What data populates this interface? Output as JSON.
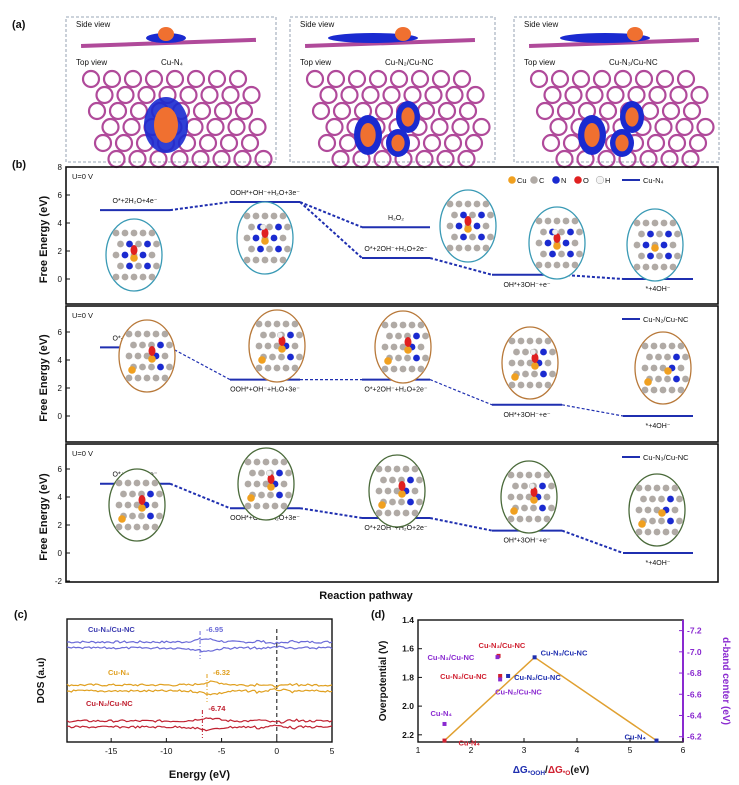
{
  "panel_labels": {
    "a": "(a)",
    "b": "(b)",
    "c": "(c)",
    "d": "(d)"
  },
  "panel_a": {
    "side_label": "Side view",
    "top_label": "Top view",
    "structures": [
      "Cu-N₄",
      "Cu-N₂/Cu-NC",
      "Cu-N₃/Cu-NC"
    ],
    "colors": {
      "lattice": "#b04a9a",
      "charge_gain": "#f07030",
      "charge_loss": "#1a2ad0"
    }
  },
  "chart_data": [
    {
      "type": "line",
      "panel": "b",
      "ylabel": "Free Energy (eV)",
      "xlabel": "Reaction pathway",
      "atom_legend": [
        "Cu",
        "C",
        "N",
        "O",
        "H"
      ],
      "atom_colors": {
        "Cu": "#f0a020",
        "C": "#b0aaa5",
        "N": "#1a2ad0",
        "O": "#e02020",
        "H": "#f4f4f4"
      },
      "subplots": [
        {
          "condition": "U=0 V",
          "series_name": "Cu-N₄",
          "yticks": [
            "8",
            "6",
            "4",
            "2",
            "0"
          ],
          "ylim": [
            -2,
            8
          ],
          "steps": [
            {
              "label": "O*+2H₂O+4e⁻",
              "energy": 4.92
            },
            {
              "label": "OOH*+OH⁻+H₂O+3e⁻",
              "energy": 5.5
            },
            {
              "label": "H₂O₂",
              "energy": 3.7
            },
            {
              "label": "O*+2OH⁻+H₂O+2e⁻",
              "energy": 1.5
            },
            {
              "label": "OH*+3OH⁻+e⁻",
              "energy": 0.3
            },
            {
              "label": "*+4OH⁻",
              "energy": 0.0
            }
          ]
        },
        {
          "condition": "U=0 V",
          "series_name": "Cu-N₂/Cu-NC",
          "yticks": [
            "6",
            "4",
            "2",
            "0"
          ],
          "ylim": [
            -2,
            8
          ],
          "steps": [
            {
              "label": "O*+2H₂O+4e⁻",
              "energy": 4.9
            },
            {
              "label": "OOH*+OH⁻+H₂O+3e⁻",
              "energy": 2.6
            },
            {
              "label": "O*+2OH⁻+H₂O+2e⁻",
              "energy": 2.6
            },
            {
              "label": "OH*+3OH⁻+e⁻",
              "energy": 0.8
            },
            {
              "label": "*+4OH⁻",
              "energy": 0.0
            }
          ]
        },
        {
          "condition": "U=0 V",
          "series_name": "Cu-N₃/Cu-NC",
          "yticks": [
            "6",
            "4",
            "2",
            "0",
            "-2"
          ],
          "ylim": [
            -2,
            8
          ],
          "steps": [
            {
              "label": "O*+2H₂O+4e⁻",
              "energy": 4.95
            },
            {
              "label": "OOH*+OH⁻+H₂O+3e⁻",
              "energy": 3.2
            },
            {
              "label": "O*+2OH⁻+H₂O+2e⁻",
              "energy": 2.5
            },
            {
              "label": "OH*+3OH⁻+e⁻",
              "energy": 1.6
            },
            {
              "label": "*+4OH⁻",
              "energy": 0.0
            }
          ]
        }
      ],
      "line_color": "#1f2fb0"
    },
    {
      "type": "line",
      "panel": "c",
      "xlabel": "Energy (eV)",
      "ylabel": "DOS (a.u)",
      "xlim": [
        -19,
        5
      ],
      "xticks": [
        "-15",
        "-10",
        "-5",
        "0",
        "5"
      ],
      "fermi_level": 0,
      "series": [
        {
          "name": "Cu-N₃/Cu-NC",
          "d_band_center": -6.95,
          "center_label": "-6.95",
          "color": "#6a6ad8"
        },
        {
          "name": "Cu-N₄",
          "d_band_center": -6.32,
          "center_label": "-6.32",
          "color": "#e0a020"
        },
        {
          "name": "Cu-N₂/Cu-NC",
          "d_band_center": -6.74,
          "center_label": "-6.74",
          "color": "#c02030"
        }
      ]
    },
    {
      "type": "scatter",
      "panel": "d",
      "xlabel_parts": [
        "ΔG",
        "*OOH",
        "/",
        "ΔG",
        "*O",
        "(eV)"
      ],
      "ylabel": "Overpotential (V)",
      "y2label": "d-band center (eV)",
      "xlim": [
        1,
        6
      ],
      "ylim": [
        1.4,
        2.25
      ],
      "y2lim": [
        -7.3,
        -6.15
      ],
      "xticks": [
        "1",
        "2",
        "3",
        "4",
        "5",
        "6"
      ],
      "yticks": [
        "1.4",
        "1.6",
        "1.8",
        "2.0",
        "2.2"
      ],
      "y2ticks": [
        "-7.2",
        "-7.0",
        "-6.8",
        "-6.6",
        "-6.4",
        "-6.2"
      ],
      "volcano": [
        [
          1.5,
          2.24
        ],
        [
          3.2,
          1.66
        ],
        [
          5.5,
          2.24
        ]
      ],
      "volcano_color": "#e0a030",
      "series": [
        {
          "key": "ooh",
          "color": "#1f2fb0",
          "axis": "left",
          "points": [
            {
              "x": 3.2,
              "y": 1.66,
              "label": "Cu-N₃/Cu-NC"
            },
            {
              "x": 2.7,
              "y": 1.79,
              "label": "Cu-N₂/Cu-NC"
            },
            {
              "x": 5.5,
              "y": 2.24,
              "label": "Cu-N₄"
            }
          ]
        },
        {
          "key": "o",
          "color": "#d02030",
          "axis": "left",
          "points": [
            {
              "x": 2.52,
              "y": 1.65,
              "label": "Cu-N₃/Cu-NC"
            },
            {
              "x": 2.55,
              "y": 1.79,
              "label": "Cu-N₂/Cu-NC"
            },
            {
              "x": 1.5,
              "y": 2.24,
              "label": "Cu-N₄"
            }
          ]
        },
        {
          "key": "dband",
          "color": "#8a2ad0",
          "axis": "right",
          "points": [
            {
              "x": 2.5,
              "y": -6.95,
              "label": "Cu-N₃/Cu-NC"
            },
            {
              "x": 2.55,
              "y": -6.74,
              "label": "Cu-N₂/Cu-NC"
            },
            {
              "x": 1.5,
              "y": -6.32,
              "label": "Cu-N₄"
            }
          ]
        }
      ]
    }
  ]
}
